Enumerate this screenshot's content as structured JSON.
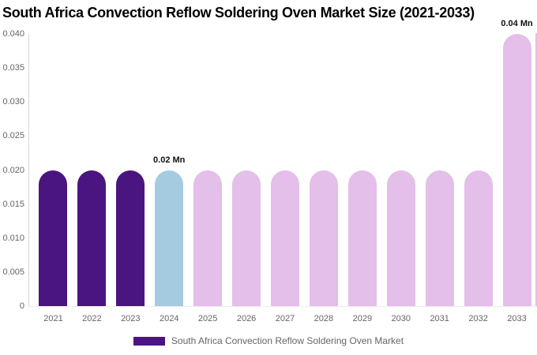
{
  "title": "South Africa Convection Reflow Soldering Oven Market Size (2021-2033)",
  "colors": {
    "historical_bar": "#4A1580",
    "current_bar": "#A5CBE1",
    "forecast_bar": "#E4BFE9",
    "axis_line": "#D7D7D7",
    "tick_label": "#666666",
    "annotation_text": "#111111",
    "title_text": "#000000",
    "legend_text": "#666666"
  },
  "chart_data": {
    "type": "bar",
    "title": "South Africa Convection Reflow Soldering Oven Market Size (2021-2033)",
    "unit": "Mn",
    "categories": [
      "2021",
      "2022",
      "2023",
      "2024",
      "2025",
      "2026",
      "2027",
      "2028",
      "2029",
      "2030",
      "2031",
      "2032",
      "2033"
    ],
    "values": [
      0.02,
      0.02,
      0.02,
      0.02,
      0.02,
      0.02,
      0.02,
      0.02,
      0.02,
      0.02,
      0.02,
      0.02,
      0.04
    ],
    "bar_color_roles": [
      "historical",
      "historical",
      "historical",
      "current",
      "forecast",
      "forecast",
      "forecast",
      "forecast",
      "forecast",
      "forecast",
      "forecast",
      "forecast",
      "forecast"
    ],
    "annotations": [
      {
        "category": "2024",
        "text": "0.02 Mn"
      },
      {
        "category": "2033",
        "text": "0.04 Mn"
      }
    ],
    "partial_bar_at_right_edge": {
      "visible": true,
      "role": "forecast"
    },
    "ylim": [
      0,
      0.04
    ],
    "yticks": [
      "0.040",
      "0.035",
      "0.030",
      "0.025",
      "0.020",
      "0.015",
      "0.010",
      "0.005",
      "0"
    ],
    "grid": false,
    "xlabel": "",
    "ylabel": "",
    "legend": {
      "label": "South Africa Convection Reflow Soldering Oven Market",
      "position": "bottom"
    }
  }
}
